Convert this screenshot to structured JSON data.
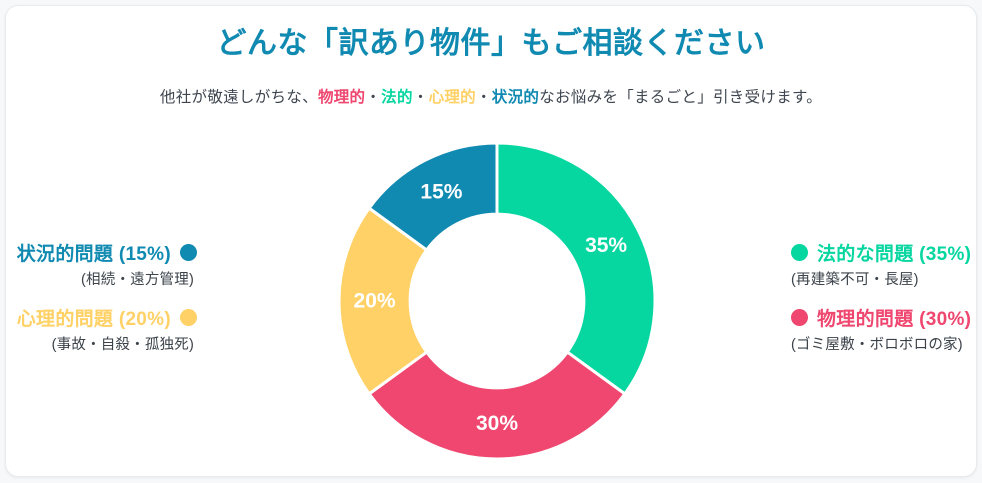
{
  "page": {
    "background_color": "#f7f8fa",
    "card_color": "#ffffff"
  },
  "header": {
    "title": "どんな「訳あり物件」もご相談ください",
    "title_color": "#118ab2",
    "subtitle_segments": [
      {
        "text": "他社が敬遠しがちな、",
        "color": "#3f4650",
        "bold": false
      },
      {
        "text": "物理的",
        "color": "#ef476f",
        "bold": true
      },
      {
        "text": "・",
        "color": "#3f4650",
        "bold": false
      },
      {
        "text": "法的",
        "color": "#06d6a0",
        "bold": true
      },
      {
        "text": "・",
        "color": "#3f4650",
        "bold": false
      },
      {
        "text": "心理的",
        "color": "#ffd166",
        "bold": true
      },
      {
        "text": "・",
        "color": "#3f4650",
        "bold": false
      },
      {
        "text": "状況的",
        "color": "#118ab2",
        "bold": true
      },
      {
        "text": "なお悩みを「まるごと」引き受けます。",
        "color": "#3f4650",
        "bold": false
      }
    ]
  },
  "chart_data": {
    "type": "pie",
    "subtype": "donut",
    "title": "どんな「訳あり物件」もご相談ください",
    "categories": [
      "法的な問題",
      "物理的問題",
      "心理的問題",
      "状況的問題"
    ],
    "values": [
      35,
      30,
      20,
      15
    ],
    "unit": "%",
    "colors": [
      "#06d6a0",
      "#ef476f",
      "#ffd166",
      "#118ab2"
    ],
    "slice_labels": [
      "35%",
      "30%",
      "20%",
      "15%"
    ],
    "start_angle_deg": 0,
    "direction": "clockwise",
    "inner_radius_ratio": 0.55,
    "gap_color": "#ffffff",
    "legend_position": "sides"
  },
  "legend": {
    "left": [
      {
        "label": "状況的問題 (15%)",
        "sub": "(相続・遠方管理)",
        "color": "#118ab2"
      },
      {
        "label": "心理的問題 (20%)",
        "sub": "(事故・自殺・孤独死)",
        "color": "#ffd166"
      }
    ],
    "right": [
      {
        "label": "法的な問題 (35%)",
        "sub": "(再建築不可・長屋)",
        "color": "#06d6a0"
      },
      {
        "label": "物理的問題 (30%)",
        "sub": "(ゴミ屋敷・ボロボロの家)",
        "color": "#ef476f"
      }
    ]
  }
}
